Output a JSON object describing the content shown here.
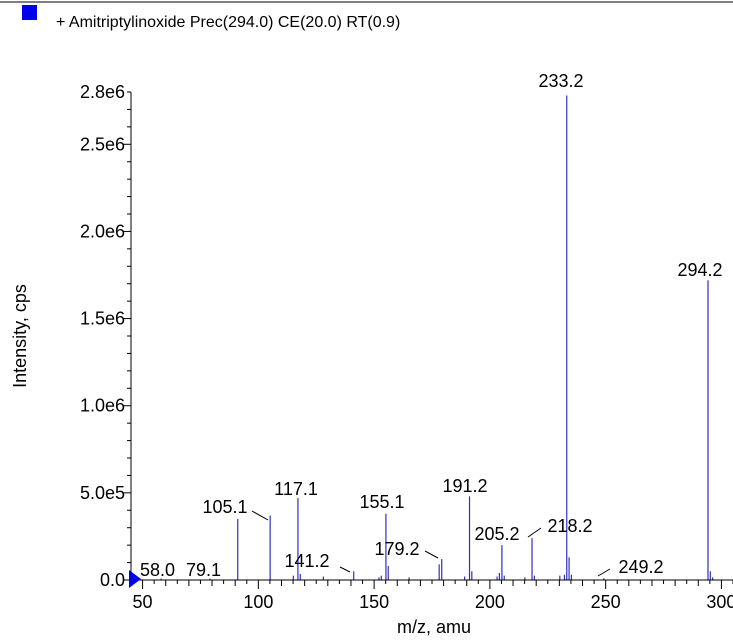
{
  "legend": {
    "marker_color": "#0000ee",
    "text": "+ Amitriptylinoxide  Prec(294.0) CE(20.0) RT(0.9)"
  },
  "chart_data": {
    "type": "bar",
    "title": "+ Amitriptylinoxide  Prec(294.0) CE(20.0) RT(0.9)",
    "xlabel": "m/z, amu",
    "ylabel": "Intensity, cps",
    "xlim": [
      45,
      305
    ],
    "ylim": [
      0,
      2800000.0
    ],
    "x_ticks": [
      50,
      100,
      150,
      200,
      250,
      300
    ],
    "x_tick_labels": [
      "50",
      "100",
      "150",
      "200",
      "250",
      "300"
    ],
    "y_ticks": [
      0,
      500000,
      1000000,
      1500000,
      2000000,
      2500000,
      2800000
    ],
    "y_tick_labels": [
      "0.0",
      "5.0e5",
      "1.0e6",
      "1.5e6",
      "2.0e6",
      "2.5e6",
      "2.8e6"
    ],
    "series_color": "#3030c0",
    "peaks": [
      {
        "mz": 58.0,
        "intensity": 8000
      },
      {
        "mz": 79.1,
        "intensity": 8000
      },
      {
        "mz": 91.1,
        "intensity": 350000
      },
      {
        "mz": 105.1,
        "intensity": 370000
      },
      {
        "mz": 115.1,
        "intensity": 25000
      },
      {
        "mz": 117.1,
        "intensity": 470000
      },
      {
        "mz": 118.1,
        "intensity": 35000
      },
      {
        "mz": 128.1,
        "intensity": 20000
      },
      {
        "mz": 141.2,
        "intensity": 50000
      },
      {
        "mz": 152.1,
        "intensity": 15000
      },
      {
        "mz": 153.1,
        "intensity": 25000
      },
      {
        "mz": 155.1,
        "intensity": 380000
      },
      {
        "mz": 156.1,
        "intensity": 80000
      },
      {
        "mz": 165.1,
        "intensity": 15000
      },
      {
        "mz": 178.1,
        "intensity": 90000
      },
      {
        "mz": 179.2,
        "intensity": 120000
      },
      {
        "mz": 189.1,
        "intensity": 20000
      },
      {
        "mz": 191.2,
        "intensity": 480000
      },
      {
        "mz": 192.2,
        "intensity": 50000
      },
      {
        "mz": 203.1,
        "intensity": 20000
      },
      {
        "mz": 204.1,
        "intensity": 40000
      },
      {
        "mz": 205.2,
        "intensity": 200000
      },
      {
        "mz": 206.2,
        "intensity": 25000
      },
      {
        "mz": 215.1,
        "intensity": 15000
      },
      {
        "mz": 218.2,
        "intensity": 240000
      },
      {
        "mz": 219.2,
        "intensity": 25000
      },
      {
        "mz": 230.2,
        "intensity": 25000
      },
      {
        "mz": 232.2,
        "intensity": 30000
      },
      {
        "mz": 233.2,
        "intensity": 2780000
      },
      {
        "mz": 234.2,
        "intensity": 130000
      },
      {
        "mz": 235.2,
        "intensity": 30000
      },
      {
        "mz": 249.2,
        "intensity": 10000
      },
      {
        "mz": 294.2,
        "intensity": 1720000
      },
      {
        "mz": 295.2,
        "intensity": 50000
      },
      {
        "mz": 296.2,
        "intensity": 15000
      }
    ],
    "annotations": [
      "58.0",
      "79.1",
      "105.1",
      "117.1",
      "141.2",
      "155.1",
      "179.2",
      "191.2",
      "205.2",
      "218.2",
      "233.2",
      "249.2",
      "294.2"
    ]
  }
}
